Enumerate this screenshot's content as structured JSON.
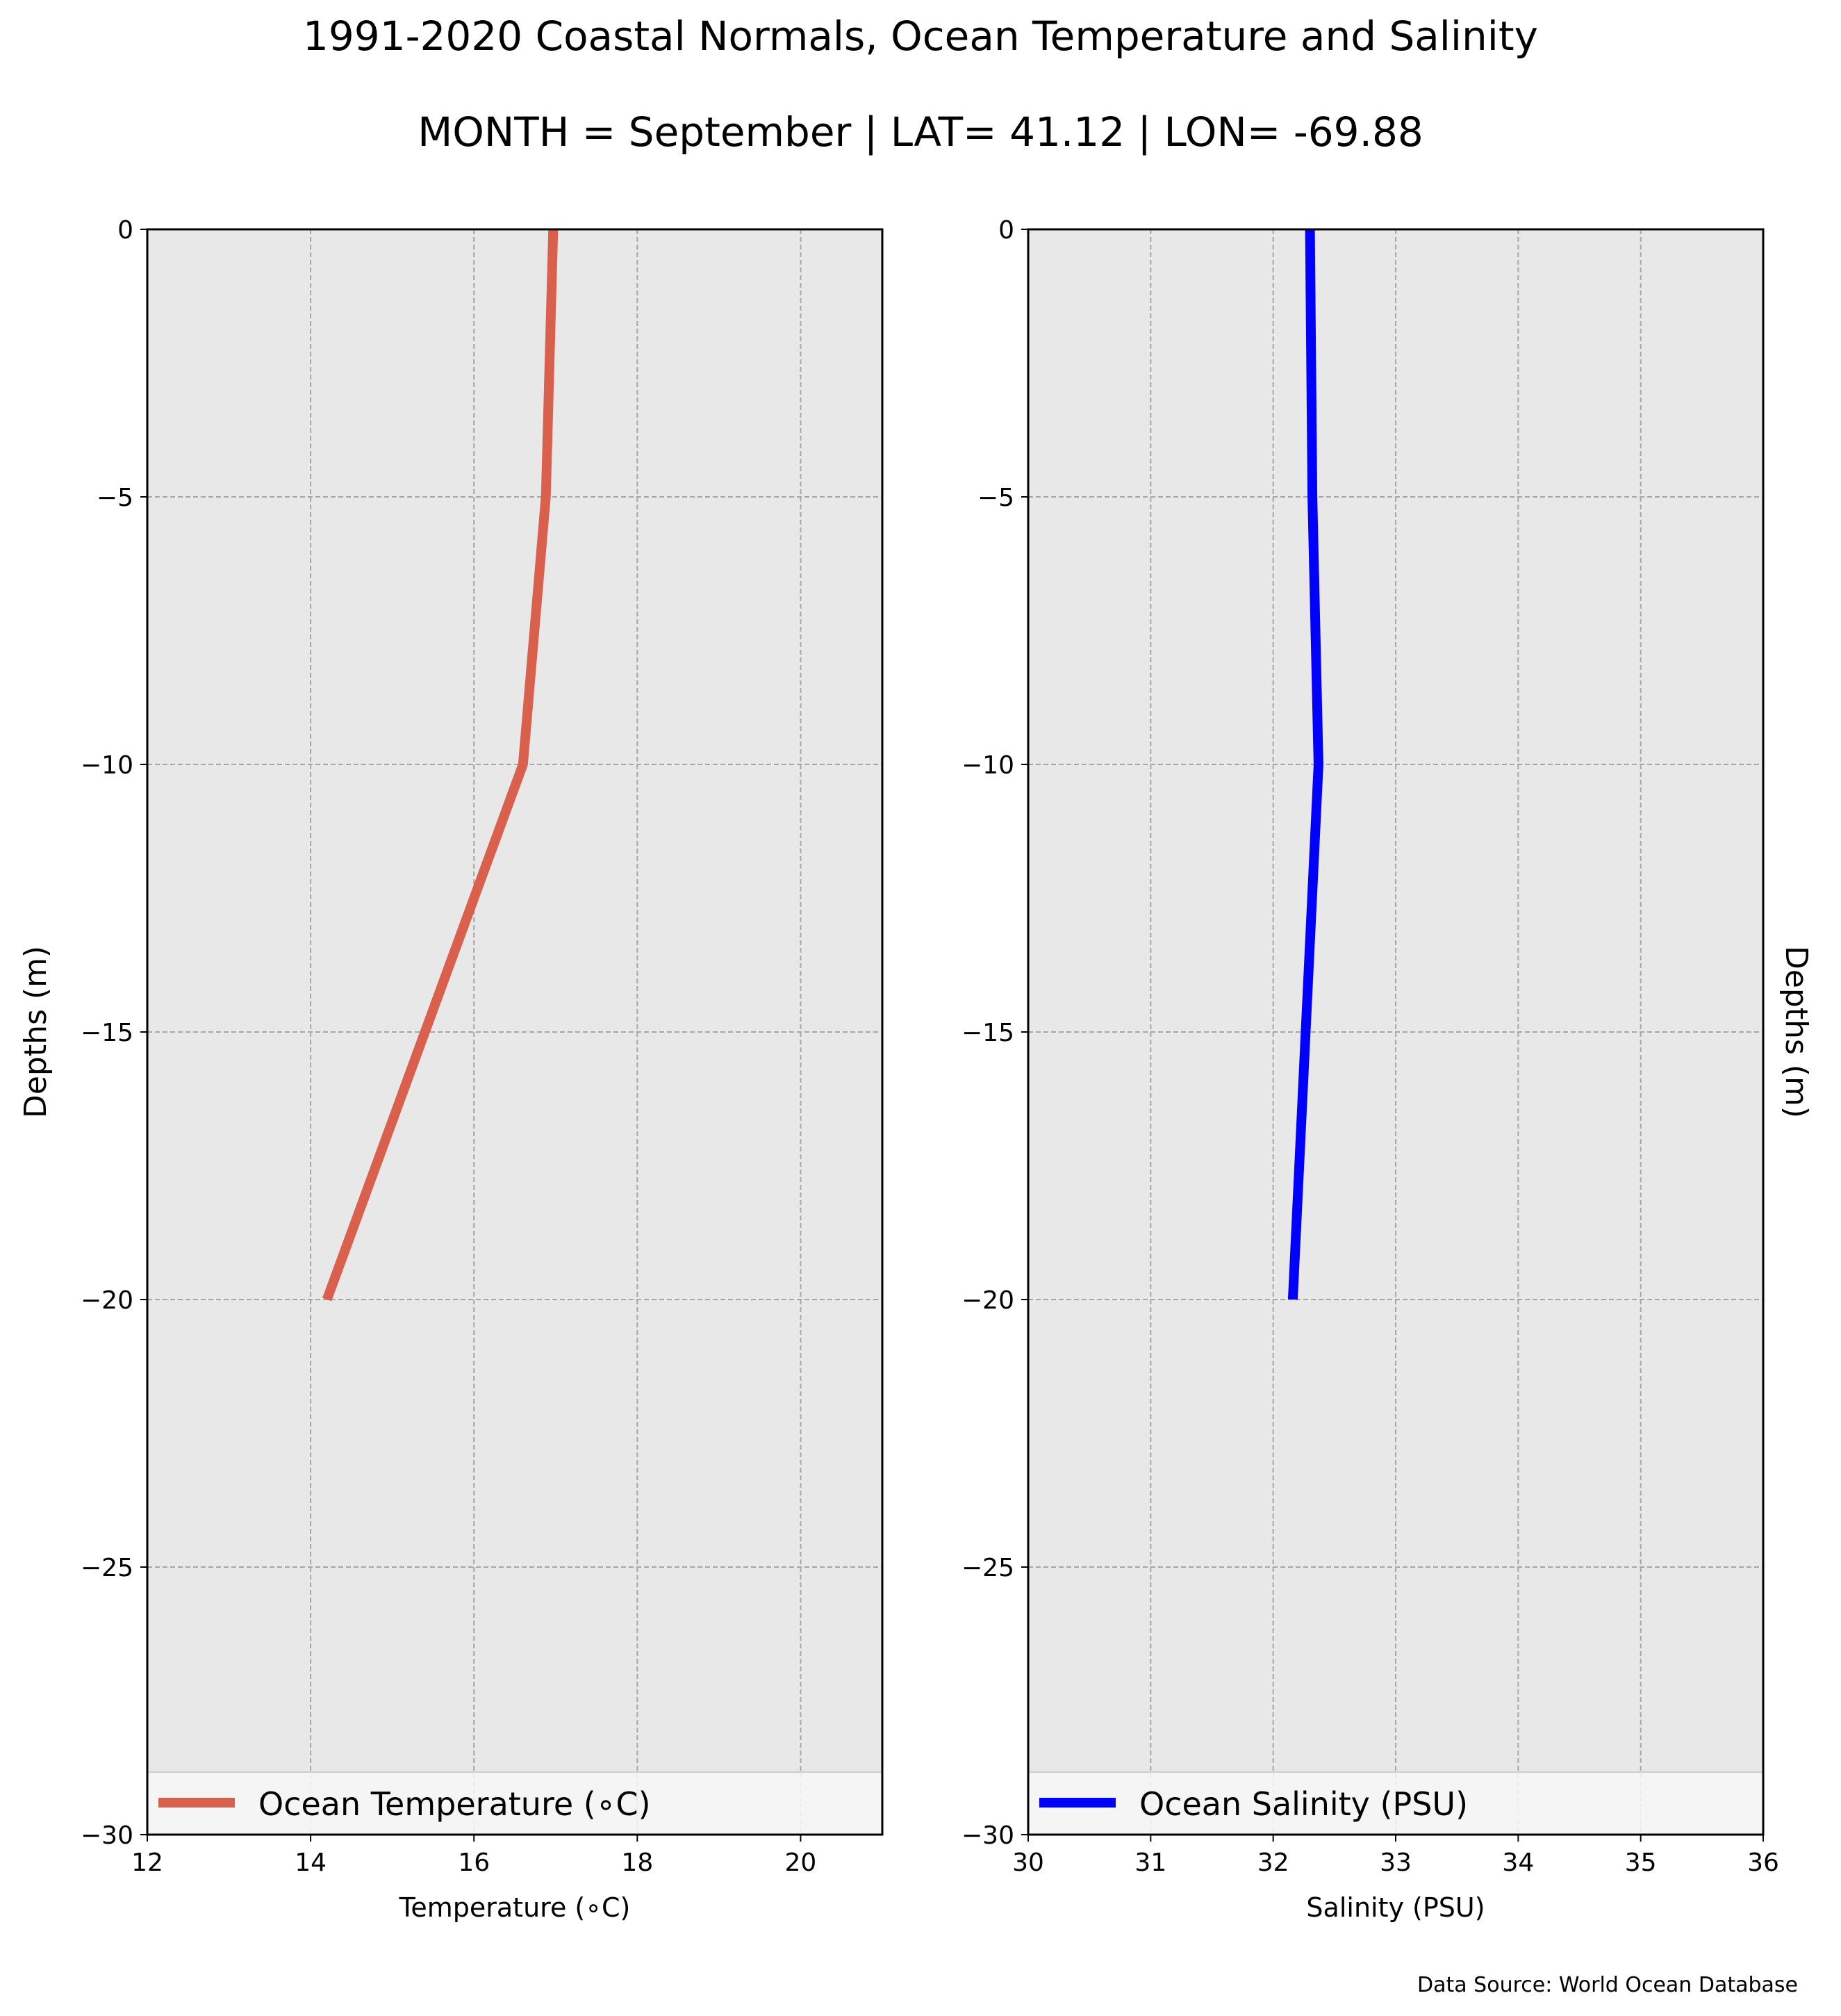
{
  "figure": {
    "title": "1991-2020 Coastal Normals, Ocean Temperature and Salinity",
    "subtitle": "MONTH = September | LAT= 41.12 | LON= -69.88",
    "source_note": "Data Source: World Ocean Database"
  },
  "chart_data": [
    {
      "type": "line",
      "xlabel": "Temperature ($^\\circ$C)",
      "xlabel_display": "Temperature (∘C)",
      "ylabel": "Depths (m)",
      "xlim": [
        12,
        21
      ],
      "ylim": [
        -30,
        0
      ],
      "xticks": [
        12,
        14,
        16,
        18,
        20
      ],
      "yticks": [
        0,
        -5,
        -10,
        -15,
        -20,
        -25,
        -30
      ],
      "grid": true,
      "legend_position": "lower center",
      "series": [
        {
          "name": "Ocean Temperature (∘C)",
          "color": "#d9604d",
          "x": [
            16.97,
            16.88,
            16.6,
            14.2
          ],
          "y": [
            0,
            -5,
            -10,
            -20
          ]
        }
      ]
    },
    {
      "type": "line",
      "xlabel": "Salinity (PSU)",
      "ylabel": "Depths (m)",
      "ylabel_side": "right",
      "xlim": [
        30,
        36
      ],
      "ylim": [
        -30,
        0
      ],
      "xticks": [
        30,
        31,
        32,
        33,
        34,
        35,
        36
      ],
      "yticks": [
        0,
        -5,
        -10,
        -15,
        -20,
        -25,
        -30
      ],
      "grid": true,
      "legend_position": "lower center",
      "series": [
        {
          "name": "Ocean Salinity (PSU)",
          "color": "#0000ff",
          "x": [
            32.3,
            32.32,
            32.37,
            32.16
          ],
          "y": [
            0,
            -5,
            -10,
            -20
          ]
        }
      ]
    }
  ],
  "colors": {
    "axes_background": "#e8e8e8",
    "grid": "#a6a6a6"
  }
}
